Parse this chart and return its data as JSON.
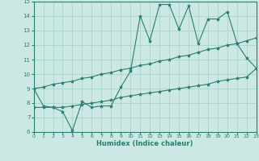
{
  "x": [
    0,
    1,
    2,
    3,
    4,
    5,
    6,
    7,
    8,
    9,
    10,
    11,
    12,
    13,
    14,
    15,
    16,
    17,
    18,
    19,
    20,
    21,
    22,
    23
  ],
  "line1": [
    9.0,
    7.8,
    7.7,
    7.4,
    6.1,
    8.1,
    7.7,
    7.8,
    7.8,
    9.1,
    10.2,
    14.0,
    12.3,
    14.8,
    14.8,
    13.1,
    14.7,
    12.1,
    13.8,
    13.8,
    14.3,
    12.1,
    11.1,
    10.4
  ],
  "line2": [
    9.0,
    9.1,
    9.3,
    9.4,
    9.5,
    9.7,
    9.8,
    10.0,
    10.1,
    10.3,
    10.4,
    10.6,
    10.7,
    10.9,
    11.0,
    11.2,
    11.3,
    11.5,
    11.7,
    11.8,
    12.0,
    12.1,
    12.3,
    12.5
  ],
  "line3": [
    7.7,
    7.7,
    7.7,
    7.7,
    7.8,
    7.9,
    8.0,
    8.1,
    8.2,
    8.4,
    8.5,
    8.6,
    8.7,
    8.8,
    8.9,
    9.0,
    9.1,
    9.2,
    9.3,
    9.5,
    9.6,
    9.7,
    9.8,
    10.4
  ],
  "color": "#2d7d6e",
  "bg_color": "#cce8e4",
  "grid_color": "#aad4cf",
  "xlabel": "Humidex (Indice chaleur)",
  "ylim": [
    6,
    15
  ],
  "xlim": [
    0,
    23
  ],
  "yticks": [
    6,
    7,
    8,
    9,
    10,
    11,
    12,
    13,
    14,
    15
  ],
  "xticks": [
    0,
    1,
    2,
    3,
    4,
    5,
    6,
    7,
    8,
    9,
    10,
    11,
    12,
    13,
    14,
    15,
    16,
    17,
    18,
    19,
    20,
    21,
    22,
    23
  ],
  "marker": "*",
  "markersize": 3.0,
  "linewidth": 0.8
}
